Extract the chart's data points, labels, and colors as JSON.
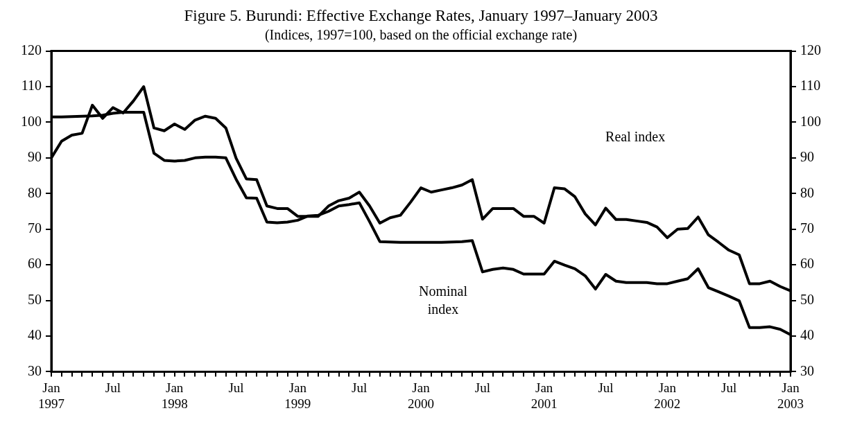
{
  "chart_data": {
    "type": "line",
    "title": "Figure 5. Burundi: Effective Exchange Rates, January 1997–January 2003",
    "subtitle": "(Indices, 1997=100, based on the official exchange rate)",
    "x": [
      "1997-01",
      "1997-02",
      "1997-03",
      "1997-04",
      "1997-05",
      "1997-06",
      "1997-07",
      "1997-08",
      "1997-09",
      "1997-10",
      "1997-11",
      "1997-12",
      "1998-01",
      "1998-02",
      "1998-03",
      "1998-04",
      "1998-05",
      "1998-06",
      "1998-07",
      "1998-08",
      "1998-09",
      "1998-10",
      "1998-11",
      "1998-12",
      "1999-01",
      "1999-02",
      "1999-03",
      "1999-04",
      "1999-05",
      "1999-06",
      "1999-07",
      "1999-08",
      "1999-09",
      "1999-10",
      "1999-11",
      "1999-12",
      "2000-01",
      "2000-02",
      "2000-03",
      "2000-04",
      "2000-05",
      "2000-06",
      "2000-07",
      "2000-08",
      "2000-09",
      "2000-10",
      "2000-11",
      "2000-12",
      "2001-01",
      "2001-02",
      "2001-03",
      "2001-04",
      "2001-05",
      "2001-06",
      "2001-07",
      "2001-08",
      "2001-09",
      "2001-10",
      "2001-11",
      "2001-12",
      "2002-01",
      "2002-02",
      "2002-03",
      "2002-04",
      "2002-05",
      "2002-06",
      "2002-07",
      "2002-08",
      "2002-09",
      "2002-10",
      "2002-11",
      "2002-12",
      "2003-01"
    ],
    "series": [
      {
        "color": "#000000",
        "values": [
          90,
          94.7,
          96.4,
          96.9,
          104.8,
          101.1,
          104.1,
          102.6,
          106,
          110,
          98.4,
          97.6,
          99.5,
          98,
          100.6,
          101.7,
          101.1,
          98.4,
          89.9,
          84.1,
          83.9,
          76.5,
          75.8,
          75.8,
          73.6,
          73.6,
          73.6,
          76.5,
          78,
          78.7,
          80.4,
          76.5,
          71.7,
          73.2,
          73.9,
          77.6,
          81.6,
          80.4,
          81,
          81.6,
          82.4,
          83.9,
          72.8,
          75.8,
          75.8,
          75.8,
          73.6,
          73.6,
          71.7,
          81.6,
          81.3,
          79.1,
          74.3,
          71.2,
          75.9,
          72.7,
          72.7,
          72.3,
          71.9,
          70.6,
          67.6,
          70,
          70.2,
          73.4,
          68.4,
          66.3,
          64.1,
          62.8,
          54.7,
          54.7,
          55.4,
          53.9,
          52.7
        ]
      },
      {
        "color": "#000000",
        "values": [
          101.5,
          101.5,
          101.6,
          101.7,
          101.8,
          102,
          102.5,
          102.8,
          102.8,
          102.8,
          91.3,
          89.3,
          89.1,
          89.3,
          90,
          90.2,
          90.2,
          90,
          84,
          78.8,
          78.7,
          72,
          71.8,
          72,
          72.5,
          73.7,
          73.9,
          75,
          76.5,
          76.9,
          77.4,
          72.1,
          66.5,
          66.4,
          66.3,
          66.3,
          66.3,
          66.3,
          66.3,
          66.4,
          66.5,
          66.8,
          58,
          58.7,
          59.1,
          58.7,
          57.4,
          57.4,
          57.4,
          61,
          59.9,
          58.9,
          56.9,
          53.2,
          57.3,
          55.4,
          55,
          55,
          55,
          54.7,
          54.7,
          55.4,
          56.1,
          58.9,
          53.6,
          52.4,
          51.2,
          49.9,
          42.4,
          42.4,
          42.6,
          41.9,
          40.4
        ]
      }
    ],
    "annotations": [
      "Real index",
      "Nominal\nindex"
    ],
    "xlim": [
      "1997-01",
      "2003-01"
    ],
    "xticks": [
      {
        "value": "1997-01",
        "label": "Jan 1997"
      },
      {
        "value": "1997-02",
        "label": null
      },
      {
        "value": "1997-03",
        "label": null
      },
      {
        "value": "1997-04",
        "label": null
      },
      {
        "value": "1997-05",
        "label": null
      },
      {
        "value": "1997-06",
        "label": null
      },
      {
        "value": "1997-07",
        "label": "Jul"
      },
      {
        "value": "1997-08",
        "label": null
      },
      {
        "value": "1997-09",
        "label": null
      },
      {
        "value": "1997-10",
        "label": null
      },
      {
        "value": "1997-11",
        "label": null
      },
      {
        "value": "1997-12",
        "label": null
      },
      {
        "value": "1998-01",
        "label": "Jan 1998"
      },
      {
        "value": "1998-02",
        "label": null
      },
      {
        "value": "1998-03",
        "label": null
      },
      {
        "value": "1998-04",
        "label": null
      },
      {
        "value": "1998-05",
        "label": null
      },
      {
        "value": "1998-06",
        "label": null
      },
      {
        "value": "1998-07",
        "label": "Jul"
      },
      {
        "value": "1998-08",
        "label": null
      },
      {
        "value": "1998-09",
        "label": null
      },
      {
        "value": "1998-10",
        "label": null
      },
      {
        "value": "1998-11",
        "label": null
      },
      {
        "value": "1998-12",
        "label": null
      },
      {
        "value": "1999-01",
        "label": "Jan 1999"
      },
      {
        "value": "1999-02",
        "label": null
      },
      {
        "value": "1999-03",
        "label": null
      },
      {
        "value": "1999-04",
        "label": null
      },
      {
        "value": "1999-05",
        "label": null
      },
      {
        "value": "1999-06",
        "label": null
      },
      {
        "value": "1999-07",
        "label": "Jul"
      },
      {
        "value": "1999-08",
        "label": null
      },
      {
        "value": "1999-09",
        "label": null
      },
      {
        "value": "1999-10",
        "label": null
      },
      {
        "value": "1999-11",
        "label": null
      },
      {
        "value": "1999-12",
        "label": null
      },
      {
        "value": "2000-01",
        "label": "Jan 2000"
      },
      {
        "value": "2000-02",
        "label": null
      },
      {
        "value": "2000-03",
        "label": null
      },
      {
        "value": "2000-04",
        "label": null
      },
      {
        "value": "2000-05",
        "label": null
      },
      {
        "value": "2000-06",
        "label": null
      },
      {
        "value": "2000-07",
        "label": "Jul"
      },
      {
        "value": "2000-08",
        "label": null
      },
      {
        "value": "2000-09",
        "label": null
      },
      {
        "value": "2000-10",
        "label": null
      },
      {
        "value": "2000-11",
        "label": null
      },
      {
        "value": "2000-12",
        "label": null
      },
      {
        "value": "2001-01",
        "label": "Jan 2001"
      },
      {
        "value": "2001-02",
        "label": null
      },
      {
        "value": "2001-03",
        "label": null
      },
      {
        "value": "2001-04",
        "label": null
      },
      {
        "value": "2001-05",
        "label": null
      },
      {
        "value": "2001-06",
        "label": null
      },
      {
        "value": "2001-07",
        "label": "Jul"
      },
      {
        "value": "2001-08",
        "label": null
      },
      {
        "value": "2001-09",
        "label": null
      },
      {
        "value": "2001-10",
        "label": null
      },
      {
        "value": "2001-11",
        "label": null
      },
      {
        "value": "2001-12",
        "label": null
      },
      {
        "value": "2002-01",
        "label": "Jan 2002"
      },
      {
        "value": "2002-02",
        "label": null
      },
      {
        "value": "2002-03",
        "label": null
      },
      {
        "value": "2002-04",
        "label": null
      },
      {
        "value": "2002-05",
        "label": null
      },
      {
        "value": "2002-06",
        "label": null
      },
      {
        "value": "2002-07",
        "label": "Jul"
      },
      {
        "value": "2002-08",
        "label": null
      },
      {
        "value": "2002-09",
        "label": null
      },
      {
        "value": "2002-10",
        "label": null
      },
      {
        "value": "2002-11",
        "label": null
      },
      {
        "value": "2002-12",
        "label": null
      },
      {
        "value": "2003-01",
        "label": "Jan 2003"
      }
    ],
    "ylim": [
      30,
      120
    ],
    "yticks": [
      30,
      40,
      50,
      60,
      70,
      80,
      90,
      100,
      110,
      120
    ],
    "y2lim": [
      30,
      120
    ],
    "y2ticks": [
      30,
      40,
      50,
      60,
      70,
      80,
      90,
      100,
      110,
      120
    ],
    "grid": false,
    "legend": false,
    "marker": "none",
    "line_style": "solid"
  }
}
